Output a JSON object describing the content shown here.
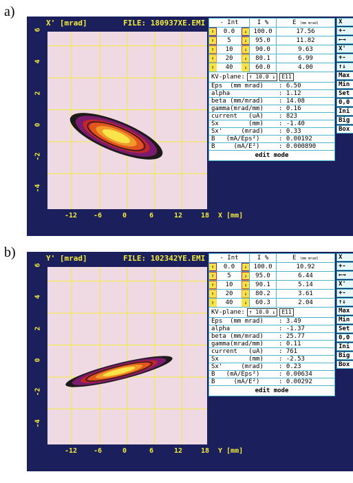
{
  "labels": {
    "a": "a)",
    "b": "b)"
  },
  "screens": [
    {
      "yaxis": "X' [mrad]",
      "file": "FILE: 180937XE.EMI",
      "xlabel": "X [mm]",
      "yticks": [
        "6",
        "4",
        "2",
        "0",
        "-2",
        "-4"
      ],
      "xticks": [
        "-12",
        "-6",
        "0",
        "6",
        "12",
        "18"
      ],
      "table_header": {
        "int": "- Int",
        "i": "I %",
        "e": "E",
        "e_unit": "(mm mrad)"
      },
      "rows": [
        {
          "level": "0.0",
          "i": "100.0",
          "e": "17.56",
          "color": "#7b1b6e"
        },
        {
          "level": "5",
          "i": "95.0",
          "e": "11.82",
          "color": "#c0262a"
        },
        {
          "level": "10",
          "i": "90.0",
          "e": "9.63",
          "color": "#e0561e"
        },
        {
          "level": "20",
          "i": "80.1",
          "e": "6.99",
          "color": "#f19a2a"
        },
        {
          "level": "40",
          "i": "60.0",
          "e": "4.00",
          "color": "#f9e44a"
        }
      ],
      "kv": {
        "label": "KV-plane:",
        "value": "10.0",
        "btn": "E11"
      },
      "params": [
        {
          "l": "Eps  (mm mrad)",
          "v": ": 6.50"
        },
        {
          "l": "alpha",
          "v": ": 1.12"
        },
        {
          "l": "beta (mm/mrad)",
          "v": ": 14.08"
        },
        {
          "l": "gamma(mrad/mm)",
          "v": ": 0.16"
        },
        {
          "l": "current   (uA)",
          "v": ": 823"
        },
        {
          "l": "Sx        (mm)",
          "v": ": -1.40"
        },
        {
          "l": "Sx'     (mrad)",
          "v": ": 0.33"
        },
        {
          "l": "B   (mA/Eps²)",
          "v": ": 0.00192"
        },
        {
          "l": "B     (mA/E²)",
          "v": ": 0.000890"
        }
      ],
      "edit": "edit mode",
      "side": [
        "X",
        "+-",
        "←→",
        "X'",
        "+-",
        "↑↓",
        "Max",
        "Min",
        "Set",
        "0,0",
        "Ini",
        "Big",
        "Box"
      ]
    },
    {
      "yaxis": "Y' [mrad]",
      "file": "FILE: 102342YE.EMI",
      "xlabel": "Y [mm]",
      "yticks": [
        "6",
        "4",
        "2",
        "0",
        "-2",
        "-4"
      ],
      "xticks": [
        "-12",
        "-6",
        "0",
        "6",
        "12",
        "18"
      ],
      "table_header": {
        "int": "- Int",
        "i": "I %",
        "e": "E",
        "e_unit": "(mm mrad)"
      },
      "rows": [
        {
          "level": "0.0",
          "i": "100.0",
          "e": "10.92",
          "color": "#7b1b6e"
        },
        {
          "level": "5",
          "i": "95.0",
          "e": "6.44",
          "color": "#c0262a"
        },
        {
          "level": "10",
          "i": "90.1",
          "e": "5.14",
          "color": "#e0561e"
        },
        {
          "level": "20",
          "i": "80.2",
          "e": "3.61",
          "color": "#f19a2a"
        },
        {
          "level": "40",
          "i": "60.3",
          "e": "2.04",
          "color": "#f9e44a"
        }
      ],
      "kv": {
        "label": "KV-plane:",
        "value": "10.0",
        "btn": "E11"
      },
      "params": [
        {
          "l": "Eps  (mm mrad)",
          "v": ": 3.49"
        },
        {
          "l": "alpha",
          "v": ": -1.37"
        },
        {
          "l": "beta (mm/mrad)",
          "v": ": 25.77"
        },
        {
          "l": "gamma(mrad/mm)",
          "v": ": 0.11"
        },
        {
          "l": "current   (uA)",
          "v": ": 761"
        },
        {
          "l": "Sx        (mm)",
          "v": ": -2.53"
        },
        {
          "l": "Sx'     (mrad)",
          "v": ": 0.23"
        },
        {
          "l": "B   (mA/Eps²)",
          "v": ": 0.00634"
        },
        {
          "l": "B     (mA/E²)",
          "v": ": 0.00292"
        }
      ],
      "edit": "edit mode",
      "side": [
        "X",
        "+-",
        "←→",
        "X'",
        "+-",
        "↑↓",
        "Max",
        "Min",
        "Set",
        "0,0",
        "Ini",
        "Big",
        "Box"
      ]
    }
  ]
}
